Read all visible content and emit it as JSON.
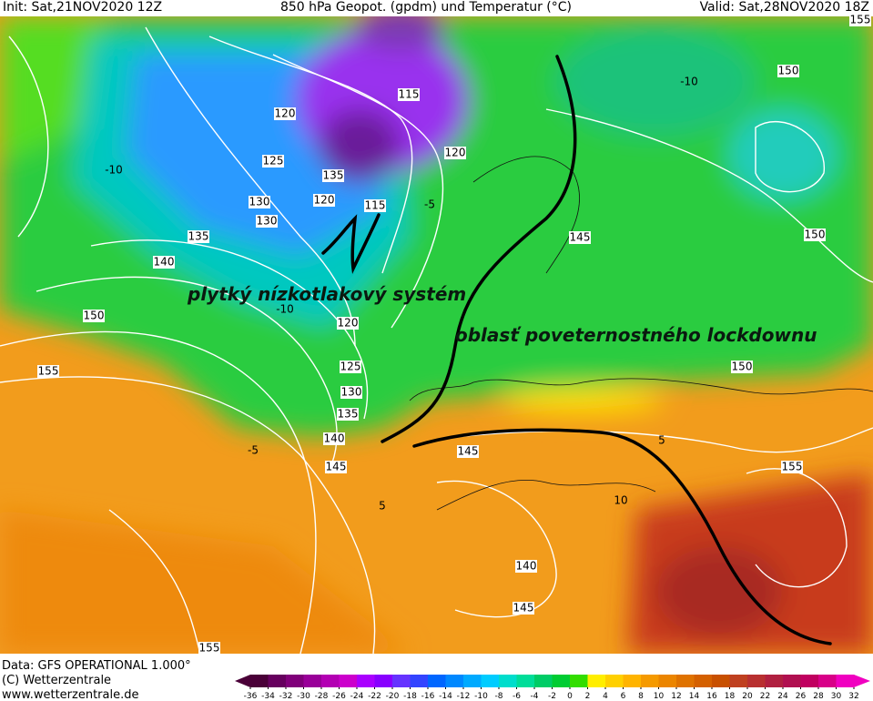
{
  "header": {
    "init": "Init: Sat,21NOV2020 12Z",
    "title": "850 hPa Geopot. (gpdm) und Temperatur (°C)",
    "valid": "Valid: Sat,28NOV2020 18Z"
  },
  "annotations": [
    "plytký nízkotlakový systém",
    "oblasť poveternostného lockdownu"
  ],
  "contour_labels": [
    120,
    125,
    130,
    130,
    135,
    140,
    150,
    155,
    115,
    120,
    135,
    120,
    115,
    145,
    150,
    150,
    150,
    155,
    120,
    125,
    130,
    135,
    140,
    145,
    145,
    140,
    145,
    155,
    -10,
    -10,
    -10,
    -5,
    5,
    10,
    5,
    -5,
    155
  ],
  "footer": [
    "Data: GFS OPERATIONAL 1.000°",
    "(C) Wetterzentrale",
    "www.wetterzentrale.de"
  ],
  "colorbar": {
    "ticks": [
      -36,
      -34,
      -32,
      -30,
      -28,
      -26,
      -24,
      -22,
      -20,
      -18,
      -16,
      -14,
      -12,
      -10,
      -8,
      -6,
      -4,
      -2,
      0,
      2,
      4,
      6,
      8,
      10,
      12,
      14,
      16,
      18,
      20,
      22,
      24,
      26,
      28,
      30,
      32
    ],
    "colors": [
      "#4a0038",
      "#66005e",
      "#80007a",
      "#990099",
      "#b300b3",
      "#cc00cc",
      "#aa00ff",
      "#8800ff",
      "#6633ff",
      "#3344ff",
      "#0066ff",
      "#0088ff",
      "#00aaff",
      "#00ccff",
      "#00ddcc",
      "#00dd99",
      "#00cc66",
      "#00cc33",
      "#33dd00",
      "#ffee00",
      "#ffd000",
      "#ffb400",
      "#f59a00",
      "#eb8500",
      "#df7200",
      "#d46000",
      "#c85000",
      "#bf4020",
      "#b83030",
      "#b02040",
      "#b01050",
      "#c00060",
      "#d80088",
      "#f000c0"
    ]
  }
}
